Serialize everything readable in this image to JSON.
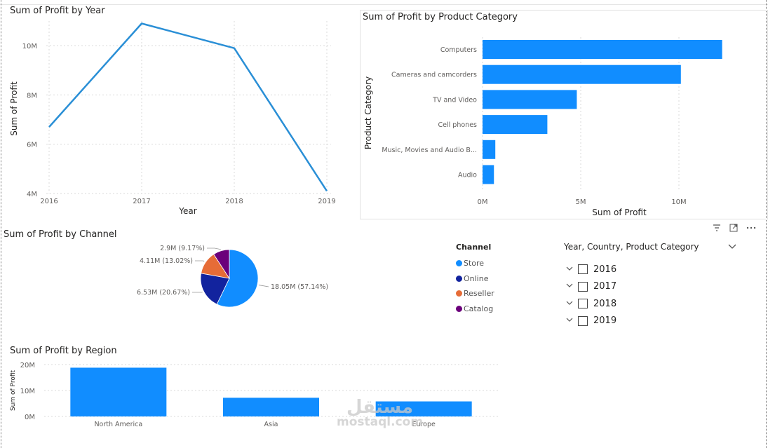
{
  "colors": {
    "primary": "#118dff",
    "line": "#2a8fd6",
    "store": "#118dff",
    "online": "#12239e",
    "reseller": "#e66c37",
    "catalog": "#6b007b",
    "grid": "#d9d9d9",
    "axis_text": "#605e5c"
  },
  "watermark": {
    "line1": "مستقل",
    "line2": "mostaql.com"
  },
  "visual_icons": [
    "filter-icon",
    "focus-mode-icon",
    "more-options-icon"
  ],
  "chart_data": [
    {
      "id": "profit_by_year",
      "type": "line",
      "title": "Sum of Profit by Year",
      "xlabel": "Year",
      "ylabel": "Sum of Profit",
      "x": [
        "2016",
        "2017",
        "2018",
        "2019"
      ],
      "values": [
        6700000,
        10900000,
        9900000,
        4100000
      ],
      "yticks": [
        {
          "v": 4000000,
          "label": "4M"
        },
        {
          "v": 6000000,
          "label": "6M"
        },
        {
          "v": 8000000,
          "label": "8M"
        },
        {
          "v": 10000000,
          "label": "10M"
        }
      ],
      "ylim": [
        4000000,
        11000000
      ],
      "grid": true
    },
    {
      "id": "profit_by_category",
      "type": "bar",
      "orientation": "horizontal",
      "title": "Sum of Profit by Product Category",
      "xlabel": "Sum of Profit",
      "ylabel": "Product Category",
      "categories": [
        "Computers",
        "Cameras and camcorders",
        "TV and Video",
        "Cell phones",
        "Music, Movies and Audio B...",
        "Audio"
      ],
      "values": [
        12200000,
        10100000,
        4800000,
        3300000,
        650000,
        580000
      ],
      "xticks": [
        {
          "v": 0,
          "label": "0M"
        },
        {
          "v": 5000000,
          "label": "5M"
        },
        {
          "v": 10000000,
          "label": "10M"
        }
      ],
      "xlim": [
        0,
        14500000
      ],
      "grid": true
    },
    {
      "id": "profit_by_channel",
      "type": "pie",
      "title": "Sum of Profit by Channel",
      "legend_title": "Channel",
      "legend_position": "right",
      "slices": [
        {
          "name": "Store",
          "value": 18.05,
          "label": "18.05M (57.14%)",
          "color": "#118dff"
        },
        {
          "name": "Online",
          "value": 6.53,
          "label": "6.53M (20.67%)",
          "color": "#12239e"
        },
        {
          "name": "Reseller",
          "value": 4.11,
          "label": "4.11M (13.02%)",
          "color": "#e66c37"
        },
        {
          "name": "Catalog",
          "value": 2.9,
          "label": "2.9M (9.17%)",
          "color": "#6b007b"
        }
      ]
    },
    {
      "id": "profit_by_region",
      "type": "bar",
      "orientation": "vertical",
      "title": "Sum of Profit by Region",
      "ylabel": "Sum of Profit",
      "categories": [
        "North America",
        "Asia",
        "Europe"
      ],
      "values": [
        18800000,
        7200000,
        5800000
      ],
      "yticks": [
        {
          "v": 0,
          "label": "0M"
        },
        {
          "v": 10000000,
          "label": "10M"
        },
        {
          "v": 20000000,
          "label": "20M"
        }
      ],
      "ylim": [
        0,
        20000000
      ],
      "grid": true
    }
  ],
  "slicer": {
    "title": "Year, Country, Product Category",
    "items": [
      {
        "label": "2016"
      },
      {
        "label": "2017"
      },
      {
        "label": "2018"
      },
      {
        "label": "2019"
      }
    ]
  }
}
